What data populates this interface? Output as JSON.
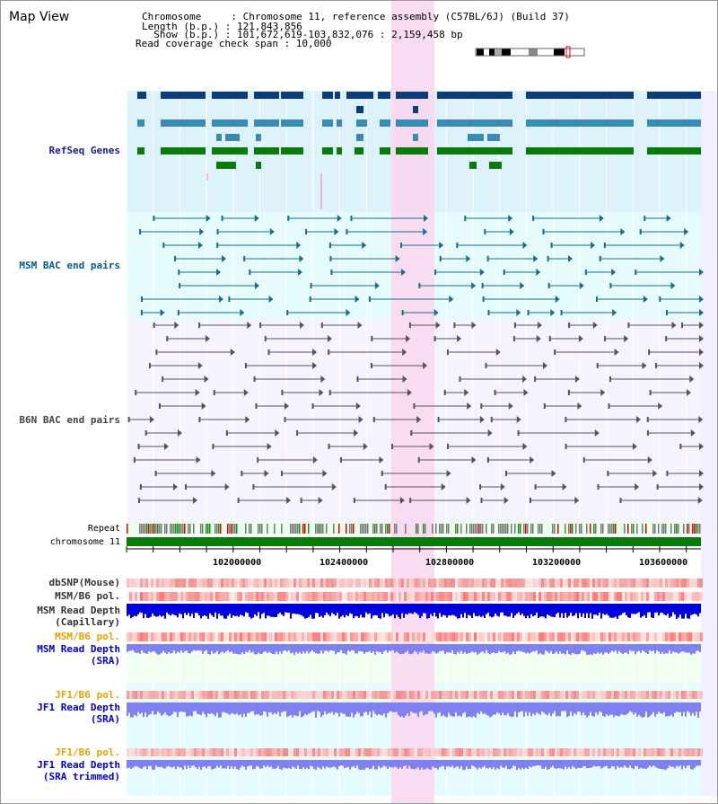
{
  "header": {
    "view_title": "Map View",
    "chromosome_line": "Chromosome     : Chromosome 11, reference assembly (C57BL/6J) (Build 37)",
    "length_line": "Length (b.p.) : 121,843,856",
    "show_line": "  Show (b.p.) : 101,672,619-103,832,076 : 2,159,458 bp",
    "coverage_line": "Read coverage check span : 10,000"
  },
  "tracks": {
    "refseq": {
      "label": "RefSeq Genes",
      "color": "#1a1aa0"
    },
    "msm_bac": {
      "label": "MSM BAC end pairs",
      "color": "#005a8c"
    },
    "b6n_bac": {
      "label": "B6N BAC end pairs",
      "color": "#444444"
    },
    "repeat": {
      "label": "Repeat"
    },
    "chromosome": {
      "label": "chromosome 11"
    },
    "dbsnp": {
      "label": "dbSNP(Mouse)"
    },
    "msm_b6_pol": {
      "label": "MSM/B6 pol."
    },
    "msm_depth_cap": {
      "label1": "MSM Read Depth",
      "label2": "(Capillary)"
    },
    "msm_b6_pol2": {
      "label": "MSM/B6 pol.",
      "color": "#e6a000"
    },
    "msm_depth_sra": {
      "label1": "MSM Read Depth",
      "label2": "(SRA)",
      "color": "#0000cc"
    },
    "jf1_b6_pol": {
      "label": "JF1/B6 pol.",
      "color": "#e6a000"
    },
    "jf1_depth_sra": {
      "label1": "JF1 Read Depth",
      "label2": "(SRA)",
      "color": "#0000cc"
    },
    "jf1_b6_pol2": {
      "label": "JF1/B6 pol.",
      "color": "#e6a000"
    },
    "jf1_depth_trim": {
      "label1": "JF1 Read Depth",
      "label2": "(SRA trimmed)",
      "color": "#0000cc"
    }
  },
  "axis": {
    "ticks": [
      "102000000",
      "102400000",
      "102800000",
      "103200000",
      "103600000"
    ]
  },
  "colors": {
    "highlight": "#f9d6f0",
    "gene_dark": "#0a3d7a",
    "gene_mid": "#3a8ab8",
    "gene_green": "#0a7a0a",
    "chrom_green": "#0a7a0a",
    "depth_blue": "#0000dd",
    "depth_light": "#8080f0"
  }
}
